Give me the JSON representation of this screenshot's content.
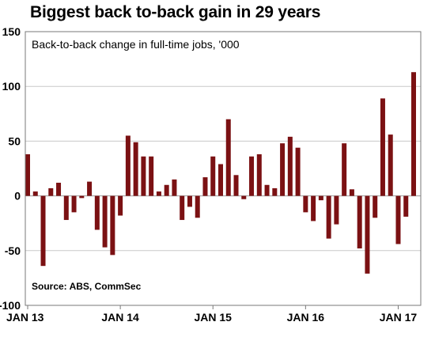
{
  "chart_data": {
    "type": "bar",
    "title": "Biggest back to-back gain in 29 years",
    "subtitle": "Back-to-back change in full-time jobs, '000",
    "source": "Source: ABS, CommSec",
    "ylim": [
      -100,
      150
    ],
    "yticks": [
      150,
      100,
      50,
      0,
      -50,
      -100
    ],
    "grid": true,
    "x_tick_labels": [
      "JAN 13",
      "JAN 14",
      "JAN 15",
      "JAN 16",
      "JAN 17"
    ],
    "bar_color": "#7b1113",
    "categories": [
      "Jan 2013",
      "Feb 2013",
      "Mar 2013",
      "Apr 2013",
      "May 2013",
      "Jun 2013",
      "Jul 2013",
      "Aug 2013",
      "Sep 2013",
      "Oct 2013",
      "Nov 2013",
      "Dec 2013",
      "Jan 2014",
      "Feb 2014",
      "Mar 2014",
      "Apr 2014",
      "May 2014",
      "Jun 2014",
      "Jul 2014",
      "Aug 2014",
      "Sep 2014",
      "Oct 2014",
      "Nov 2014",
      "Dec 2014",
      "Jan 2015",
      "Feb 2015",
      "Mar 2015",
      "Apr 2015",
      "May 2015",
      "Jun 2015",
      "Jul 2015",
      "Aug 2015",
      "Sep 2015",
      "Oct 2015",
      "Nov 2015",
      "Dec 2015",
      "Jan 2016",
      "Feb 2016",
      "Mar 2016",
      "Apr 2016",
      "May 2016",
      "Jun 2016",
      "Jul 2016",
      "Aug 2016",
      "Sep 2016",
      "Oct 2016",
      "Nov 2016",
      "Dec 2016",
      "Jan 2017",
      "Feb 2017",
      "Mar 2017"
    ],
    "values": [
      38,
      4,
      -64,
      7,
      12,
      -22,
      -15,
      -2,
      13,
      -31,
      -47,
      -54,
      -18,
      55,
      49,
      36,
      36,
      4,
      10,
      15,
      -22,
      -10,
      -20,
      17,
      36,
      29,
      70,
      19,
      -3,
      36,
      38,
      10,
      7,
      48,
      54,
      44,
      -15,
      -23,
      -4,
      -39,
      -26,
      48,
      6,
      -48,
      -71,
      -20,
      89,
      56,
      -44,
      -19,
      113
    ]
  }
}
